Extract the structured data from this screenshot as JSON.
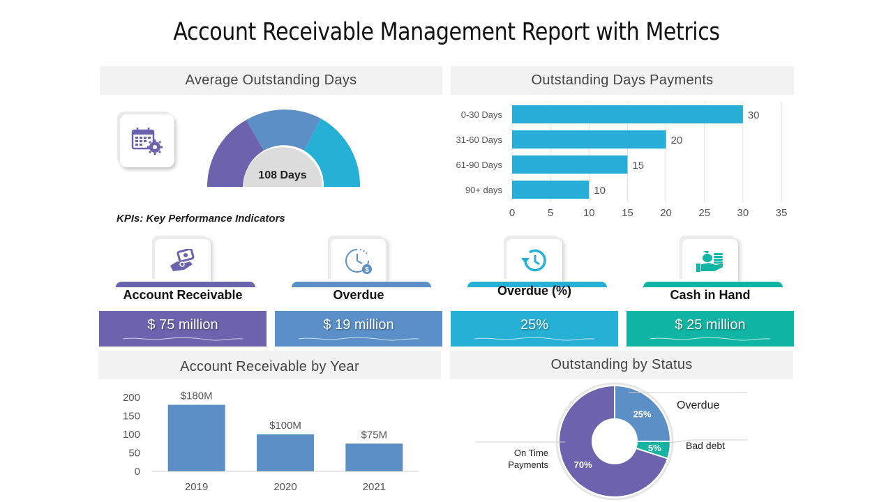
{
  "title": "Account Receivable Management Report with Metrics",
  "sections": {
    "average_outstanding_days": "Average Outstanding Days",
    "outstanding_days_payments": "Outstanding Days Payments",
    "account_receivable_by_year": "Account Receivable by Year",
    "outstanding_by_status": "Outstanding by Status"
  },
  "gauge": {
    "value_label": "108 Days"
  },
  "kpi_heading": "KPIs: Key Performance Indicators",
  "kpis": [
    {
      "label": "Account Receivable",
      "value": "$ 75 million",
      "color": "#6b63ad"
    },
    {
      "label": "Overdue",
      "value": "$ 19 million",
      "color": "#5a8fc7"
    },
    {
      "label": "Overdue (%)",
      "value": "25%",
      "color": "#27b0d6"
    },
    {
      "label": "Cash in Hand",
      "value": "$ 25 million",
      "color": "#11b5a4"
    }
  ],
  "chart_data": [
    {
      "type": "bar",
      "orientation": "horizontal",
      "categories": [
        "0-30 Days",
        "31-60 Days",
        "61-90 Days",
        "90+ days"
      ],
      "values": [
        30,
        20,
        15,
        10
      ],
      "data_labels": [
        "30",
        "20",
        "15",
        "10"
      ],
      "xlim": [
        0,
        35
      ],
      "x_ticks": [
        "0",
        "5",
        "10",
        "15",
        "20",
        "25",
        "30",
        "35"
      ],
      "grid": true,
      "color": "#27aed6"
    },
    {
      "type": "bar",
      "categories": [
        "2019",
        "2020",
        "2021"
      ],
      "values": [
        180,
        100,
        75
      ],
      "data_labels": [
        "$180M",
        "$100M",
        "$75M"
      ],
      "ylim": [
        0,
        200
      ],
      "y_ticks": [
        "0",
        "50",
        "100",
        "150",
        "200"
      ],
      "grid": false,
      "color": "#5b8fc6"
    },
    {
      "type": "pie",
      "donut": true,
      "slices": [
        {
          "label": "Overdue",
          "value": 25,
          "value_label": "25%",
          "color": "#5b8fc6"
        },
        {
          "label": "Bad debt",
          "value": 5,
          "value_label": "5%",
          "color": "#16b3a3"
        },
        {
          "label": "On Time Payments",
          "value": 70,
          "value_label": "70%",
          "color": "#6b63ad"
        }
      ]
    }
  ]
}
